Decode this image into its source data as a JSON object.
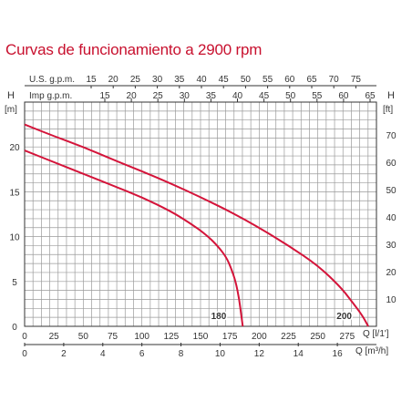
{
  "chart_data": {
    "type": "line",
    "title": "Curvas de funcionamiento a 2900 rpm",
    "colors": {
      "curve": "#d4143a",
      "grid": "#9a9a9a",
      "axis": "#333333",
      "title": "#c8102e"
    },
    "grid": true,
    "x_primary": {
      "label": "Q [l/1']",
      "ticks": [
        "0",
        "25",
        "50",
        "75",
        "100",
        "125",
        "150",
        "175",
        "200",
        "225",
        "250",
        "275"
      ],
      "range": [
        0,
        300
      ]
    },
    "x_secondary": {
      "label": "Q [m³/h]",
      "ticks": [
        "0",
        "2",
        "4",
        "6",
        "8",
        "10",
        "12",
        "14",
        "16"
      ],
      "range": [
        0,
        18
      ]
    },
    "x_top_us": {
      "label": "U.S. g.p.m.",
      "ticks": [
        "15",
        "20",
        "25",
        "30",
        "35",
        "40",
        "45",
        "50",
        "55",
        "60",
        "65",
        "70",
        "75"
      ]
    },
    "x_top_imp": {
      "label": "Imp g.p.m.",
      "ticks": [
        "15",
        "20",
        "25",
        "30",
        "35",
        "40",
        "45",
        "50",
        "55",
        "60",
        "65"
      ]
    },
    "y_left": {
      "label_top": "H",
      "unit": "[m]",
      "ticks": [
        "0",
        "5",
        "10",
        "15",
        "20"
      ],
      "range": [
        0,
        25
      ]
    },
    "y_right": {
      "label_top": "H",
      "unit": "[ft]",
      "ticks": [
        "10",
        "20",
        "30",
        "40",
        "50",
        "60",
        "70"
      ],
      "range": [
        0,
        82
      ]
    },
    "series": [
      {
        "name": "180",
        "x": [
          0,
          25,
          50,
          75,
          100,
          125,
          140,
          155,
          165,
          172,
          176,
          180,
          183,
          185,
          186
        ],
        "y": [
          19.6,
          18.3,
          17.0,
          15.7,
          14.4,
          12.8,
          11.6,
          10.2,
          8.9,
          7.7,
          6.5,
          5.0,
          3.0,
          1.0,
          0
        ]
      },
      {
        "name": "200",
        "x": [
          0,
          25,
          50,
          75,
          100,
          125,
          150,
          175,
          200,
          225,
          250,
          270,
          280,
          288,
          293
        ],
        "y": [
          22.5,
          21.2,
          20.0,
          18.6,
          17.3,
          15.9,
          14.4,
          12.8,
          11.0,
          9.0,
          6.8,
          4.3,
          2.6,
          1.2,
          0
        ]
      }
    ]
  }
}
